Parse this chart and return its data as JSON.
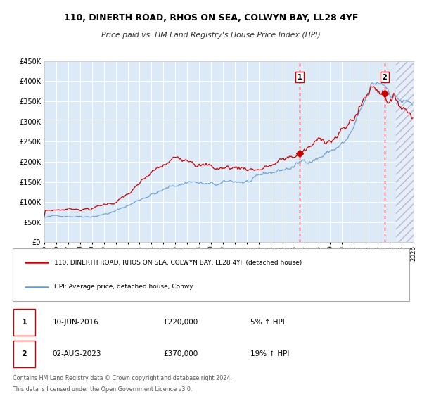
{
  "title": "110, DINERTH ROAD, RHOS ON SEA, COLWYN BAY, LL28 4YF",
  "subtitle": "Price paid vs. HM Land Registry's House Price Index (HPI)",
  "bg_color": "#dce9f7",
  "grid_color": "#ffffff",
  "red_line_color": "#cc0000",
  "blue_line_color": "#6699cc",
  "ylim": [
    0,
    450000
  ],
  "yticks": [
    0,
    50000,
    100000,
    150000,
    200000,
    250000,
    300000,
    350000,
    400000,
    450000
  ],
  "xlim_start": 1995.0,
  "xlim_end": 2026.0,
  "xticks": [
    1995,
    1996,
    1997,
    1998,
    1999,
    2000,
    2001,
    2002,
    2003,
    2004,
    2005,
    2006,
    2007,
    2008,
    2009,
    2010,
    2011,
    2012,
    2013,
    2014,
    2015,
    2016,
    2017,
    2018,
    2019,
    2020,
    2021,
    2022,
    2023,
    2024,
    2025,
    2026
  ],
  "event1_x": 2016.44,
  "event1_y": 220000,
  "event1_label": "1",
  "event1_date": "10-JUN-2016",
  "event1_price": "£220,000",
  "event1_hpi": "5% ↑ HPI",
  "event2_x": 2023.58,
  "event2_y": 370000,
  "event2_label": "2",
  "event2_date": "02-AUG-2023",
  "event2_price": "£370,000",
  "event2_hpi": "19% ↑ HPI",
  "legend_line1": "110, DINERTH ROAD, RHOS ON SEA, COLWYN BAY, LL28 4YF (detached house)",
  "legend_line2": "HPI: Average price, detached house, Conwy",
  "footer1": "Contains HM Land Registry data © Crown copyright and database right 2024.",
  "footer2": "This data is licensed under the Open Government Licence v3.0.",
  "hatch_after": 2024.5
}
